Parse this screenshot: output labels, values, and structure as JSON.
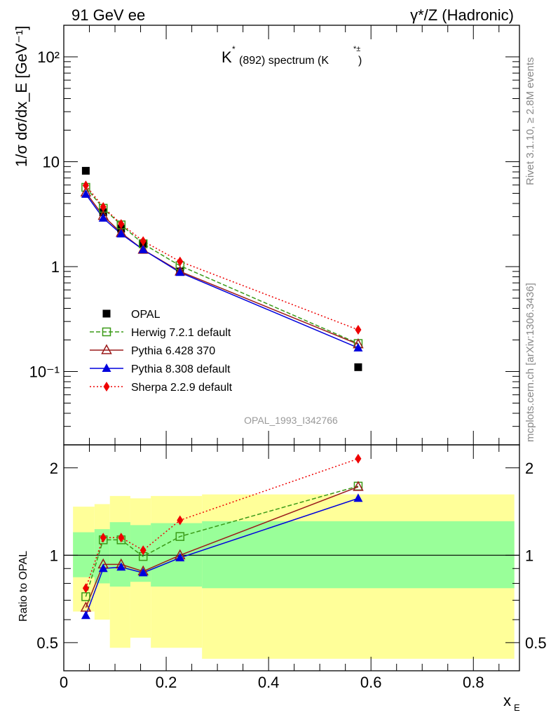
{
  "header": {
    "left_title": "91 GeV ee",
    "right_title": "γ*/Z (Hadronic)"
  },
  "side_labels": {
    "rivet": "Rivet 3.1.10, ≥ 2.8M events",
    "mcplots": "mcplots.cern.ch [arXiv:1306.3436]"
  },
  "watermark": "OPAL_1993_I342766",
  "chart_data": [
    {
      "type": "line",
      "title": "K*(892) spectrum (K*±)",
      "ylabel": "1/σ dσ/dx_E [GeV⁻¹]",
      "xlim": [
        0,
        0.89
      ],
      "ylim": [
        0.02,
        200
      ],
      "yscale": "log",
      "y_ticks": [
        {
          "value": 0.1,
          "label": "10⁻¹"
        },
        {
          "value": 1,
          "label": "1"
        },
        {
          "value": 10,
          "label": "10"
        },
        {
          "value": 100,
          "label": "10²"
        }
      ],
      "legend_position": "lower-left",
      "series": [
        {
          "name": "OPAL",
          "marker": "square-filled",
          "color": "#000000",
          "line": "none",
          "x": [
            0.043,
            0.077,
            0.112,
            0.155,
            0.227,
            0.575
          ],
          "y": [
            8.2,
            3.3,
            2.3,
            1.65,
            0.9,
            0.11
          ]
        },
        {
          "name": "Herwig 7.2.1 default",
          "marker": "square-open",
          "color": "#3a9a17",
          "line": "dashed",
          "x": [
            0.043,
            0.077,
            0.112,
            0.155,
            0.227,
            0.575
          ],
          "y": [
            5.7,
            3.6,
            2.5,
            1.65,
            1.02,
            0.185
          ]
        },
        {
          "name": "Pythia 6.428 370",
          "marker": "triangle-open",
          "color": "#9b1b1b",
          "line": "solid",
          "x": [
            0.043,
            0.077,
            0.112,
            0.155,
            0.227,
            0.575
          ],
          "y": [
            5.1,
            3.05,
            2.1,
            1.45,
            0.9,
            0.182
          ]
        },
        {
          "name": "Pythia 8.308 default",
          "marker": "triangle-filled",
          "color": "#0000dd",
          "line": "solid",
          "x": [
            0.043,
            0.077,
            0.112,
            0.155,
            0.227,
            0.575
          ],
          "y": [
            4.9,
            2.9,
            2.05,
            1.45,
            0.88,
            0.168
          ]
        },
        {
          "name": "Sherpa 2.2.9 default",
          "marker": "diamond-filled",
          "color": "#ee0000",
          "line": "dotted",
          "x": [
            0.043,
            0.077,
            0.112,
            0.155,
            0.227,
            0.575
          ],
          "y": [
            5.95,
            3.7,
            2.55,
            1.75,
            1.12,
            0.25
          ]
        }
      ]
    },
    {
      "type": "line",
      "xlabel": "x_E",
      "ylabel": "Ratio to OPAL",
      "xlim": [
        0,
        0.89
      ],
      "ylim": [
        0.4,
        2.4
      ],
      "yscale": "log",
      "x_ticks": [
        {
          "value": 0,
          "label": "0"
        },
        {
          "value": 0.2,
          "label": "0.2"
        },
        {
          "value": 0.4,
          "label": "0.4"
        },
        {
          "value": 0.6,
          "label": "0.6"
        },
        {
          "value": 0.8,
          "label": "0.8"
        }
      ],
      "y_ticks": [
        {
          "value": 0.5,
          "label": "0.5"
        },
        {
          "value": 1,
          "label": "1"
        },
        {
          "value": 2,
          "label": "2"
        }
      ],
      "bands": {
        "bins": [
          {
            "x0": 0.018,
            "x1": 0.06,
            "outer": [
              0.64,
              1.47
            ],
            "inner": [
              0.84,
              1.2
            ]
          },
          {
            "x0": 0.06,
            "x1": 0.09,
            "outer": [
              0.6,
              1.5
            ],
            "inner": [
              0.8,
              1.23
            ]
          },
          {
            "x0": 0.09,
            "x1": 0.13,
            "outer": [
              0.48,
              1.6
            ],
            "inner": [
              0.78,
              1.3
            ]
          },
          {
            "x0": 0.13,
            "x1": 0.17,
            "outer": [
              0.52,
              1.57
            ],
            "inner": [
              0.81,
              1.27
            ]
          },
          {
            "x0": 0.17,
            "x1": 0.27,
            "outer": [
              0.48,
              1.6
            ],
            "inner": [
              0.78,
              1.29
            ]
          },
          {
            "x0": 0.27,
            "x1": 0.88,
            "outer": [
              0.44,
              1.62
            ],
            "inner": [
              0.77,
              1.31
            ]
          }
        ],
        "inner_color": "#99ff99",
        "outer_color": "#ffff99"
      },
      "series": [
        {
          "name": "Herwig 7.2.1 default",
          "marker": "square-open",
          "color": "#3a9a17",
          "line": "dashed",
          "x": [
            0.043,
            0.077,
            0.112,
            0.155,
            0.227,
            0.575
          ],
          "y": [
            0.72,
            1.13,
            1.13,
            0.99,
            1.16,
            1.73
          ]
        },
        {
          "name": "Pythia 6.428 370",
          "marker": "triangle-open",
          "color": "#9b1b1b",
          "line": "solid",
          "x": [
            0.043,
            0.077,
            0.112,
            0.155,
            0.227,
            0.575
          ],
          "y": [
            0.66,
            0.93,
            0.93,
            0.88,
            1.0,
            1.72
          ]
        },
        {
          "name": "Pythia 8.308 default",
          "marker": "triangle-filled",
          "color": "#0000dd",
          "line": "solid",
          "x": [
            0.043,
            0.077,
            0.112,
            0.155,
            0.227,
            0.575
          ],
          "y": [
            0.62,
            0.9,
            0.91,
            0.87,
            0.98,
            1.57
          ]
        },
        {
          "name": "Sherpa 2.2.9 default",
          "marker": "diamond-filled",
          "color": "#ee0000",
          "line": "dotted",
          "x": [
            0.043,
            0.077,
            0.112,
            0.155,
            0.227,
            0.575
          ],
          "y": [
            0.77,
            1.15,
            1.15,
            1.04,
            1.32,
            2.15
          ]
        }
      ]
    }
  ]
}
